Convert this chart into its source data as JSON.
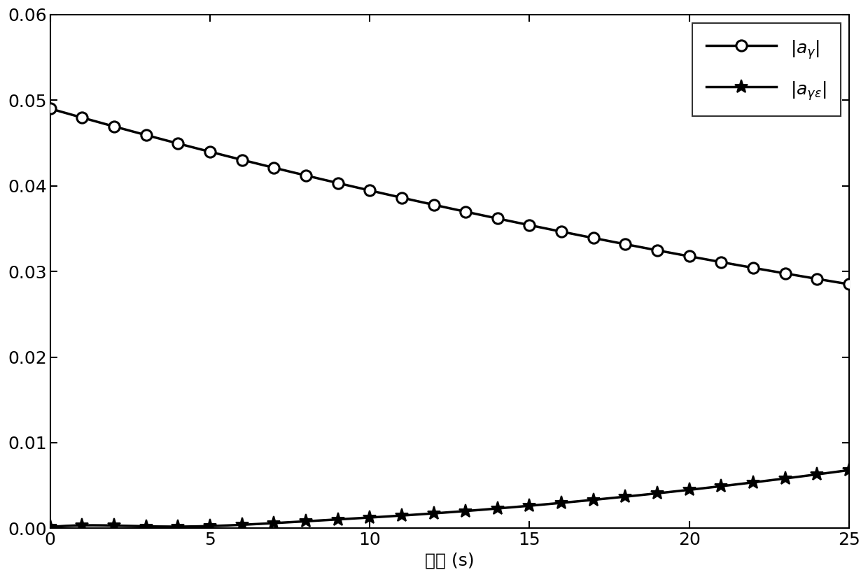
{
  "xlabel": "时间 (s)",
  "xlim": [
    0,
    25
  ],
  "ylim": [
    0,
    0.06
  ],
  "xticks": [
    0,
    5,
    10,
    15,
    20,
    25
  ],
  "yticks": [
    0,
    0.01,
    0.02,
    0.03,
    0.04,
    0.05,
    0.06
  ],
  "line1_label": "$|a_{\\gamma}|$",
  "line2_label": "$|a_{\\gamma\\varepsilon}|$",
  "line_color": "#000000",
  "linewidth": 2.5,
  "marker1": "o",
  "marker2": "*",
  "marker_size1": 11,
  "marker_size2": 14,
  "figsize": [
    12.4,
    8.25
  ],
  "dpi": 100,
  "legend_fontsize": 18,
  "tick_fontsize": 18,
  "xlabel_fontsize": 18,
  "curve1_start": 0.049,
  "curve1_end": 0.0285,
  "curve2_end": 0.0068
}
